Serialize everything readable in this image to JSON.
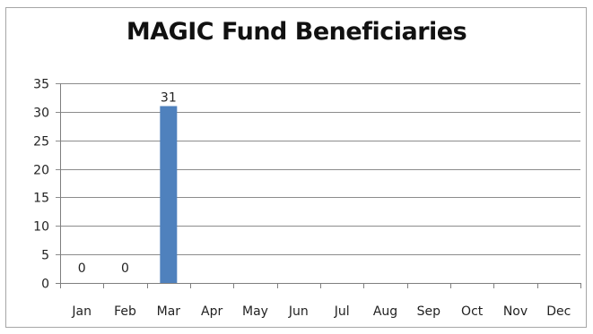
{
  "chart_data": {
    "type": "bar",
    "title": "MAGIC Fund Beneficiaries",
    "categories": [
      "Jan",
      "Feb",
      "Mar",
      "Apr",
      "May",
      "Jun",
      "Jul",
      "Aug",
      "Sep",
      "Oct",
      "Nov",
      "Dec"
    ],
    "values": [
      0,
      0,
      31,
      null,
      null,
      null,
      null,
      null,
      null,
      null,
      null,
      null
    ],
    "data_labels": [
      "0",
      "0",
      "31",
      "",
      "",
      "",
      "",
      "",
      "",
      "",
      "",
      ""
    ],
    "ylim": [
      0,
      35
    ],
    "yticks": [
      0,
      5,
      10,
      15,
      20,
      25,
      30,
      35
    ],
    "grid": true,
    "legend": "none",
    "bar_color": "#4f81bd",
    "gridline_color": "#8c8c8c"
  }
}
